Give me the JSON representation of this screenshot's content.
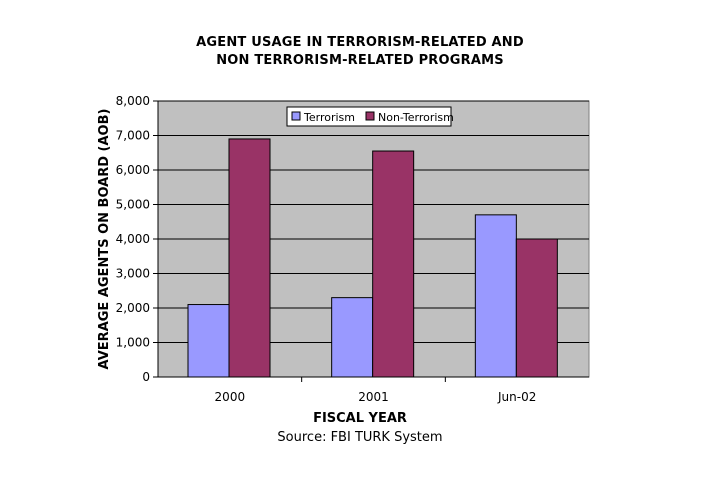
{
  "chart_data": {
    "type": "bar",
    "title_lines": [
      "AGENT USAGE IN TERRORISM-RELATED AND",
      "NON TERRORISM-RELATED PROGRAMS"
    ],
    "xlabel": "FISCAL YEAR",
    "ylabel": "AVERAGE AGENTS ON BOARD (AOB)",
    "source": "Source:  FBI TURK System",
    "categories": [
      "2000",
      "2001",
      "Jun-02"
    ],
    "series": [
      {
        "name": "Terrorism",
        "color": "#9999ff",
        "values": [
          2100,
          2300,
          4700
        ]
      },
      {
        "name": "Non-Terrorism",
        "color": "#993366",
        "values": [
          6900,
          6550,
          4000
        ]
      }
    ],
    "ylim": [
      0,
      8000
    ],
    "yticks": [
      0,
      1000,
      2000,
      3000,
      4000,
      5000,
      6000,
      7000,
      8000
    ],
    "ytick_labels": [
      "0",
      "1,000",
      "2,000",
      "3,000",
      "4,000",
      "5,000",
      "6,000",
      "7,000",
      "8,000"
    ],
    "grid": true,
    "legend_position": "top-center",
    "plot_background": "#c0c0c0"
  }
}
